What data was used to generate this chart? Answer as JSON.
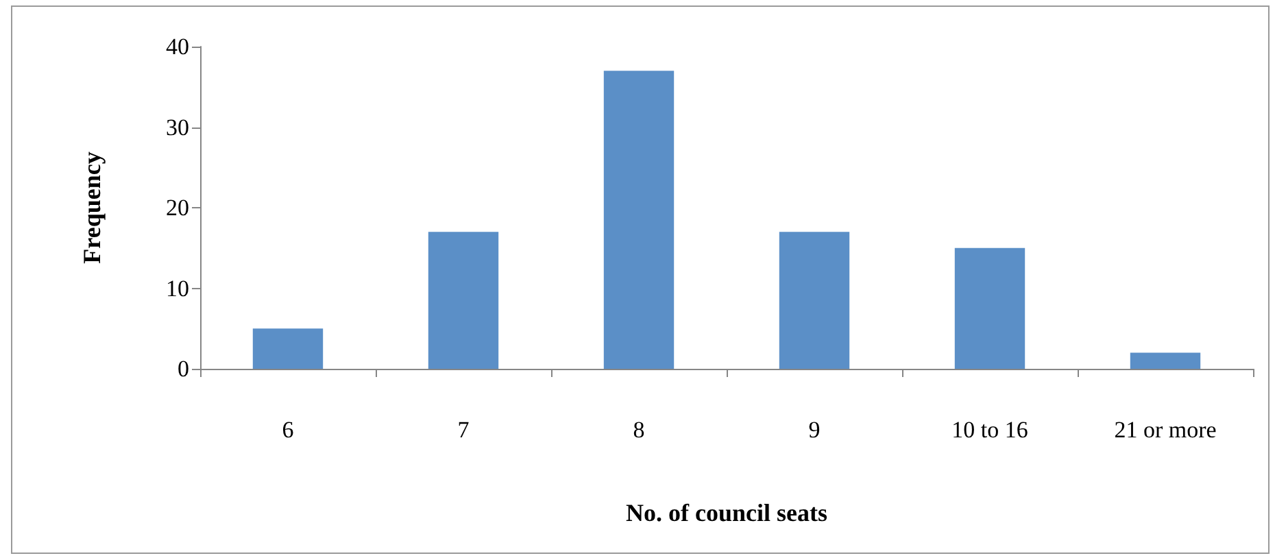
{
  "chart_data": {
    "type": "bar",
    "xlabel": "No. of council seats",
    "ylabel": "Frequency",
    "categories": [
      "6",
      "7",
      "8",
      "9",
      "10 to 16",
      "21 or more"
    ],
    "values": [
      5,
      17,
      37,
      17,
      15,
      2
    ],
    "color": "#5b8fc7",
    "ylim": [
      0,
      40
    ],
    "yticks": [
      0,
      10,
      20,
      30,
      40
    ],
    "grid": false
  }
}
